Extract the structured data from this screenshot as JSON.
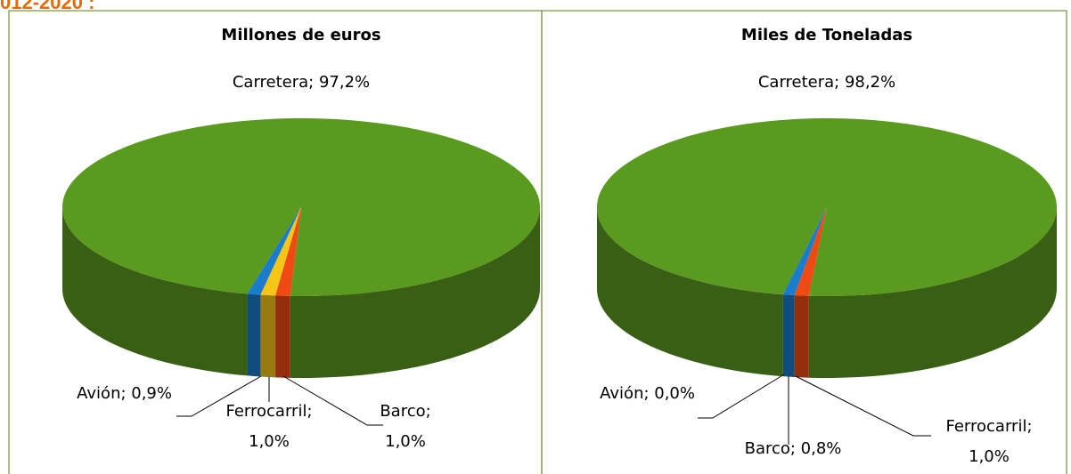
{
  "header_fragment": "012-2020 :",
  "chart_data": [
    {
      "type": "pie",
      "title": "Millones de euros",
      "categories": [
        "Carretera",
        "Avión",
        "Ferrocarril",
        "Barco"
      ],
      "values": [
        97.2,
        0.9,
        1.0,
        1.0
      ],
      "value_labels": [
        "Carretera; 97,2%",
        "Avión; 0,9%",
        "Ferrocarril; 1,0%",
        "Barco; 1,0%"
      ],
      "colors": [
        "#5a9a1e",
        "#1a7ccc",
        "#f5c518",
        "#f04a14"
      ]
    },
    {
      "type": "pie",
      "title": "Miles de Toneladas",
      "categories": [
        "Carretera",
        "Avión",
        "Barco",
        "Ferrocarril"
      ],
      "values": [
        98.2,
        0.0,
        0.8,
        1.0
      ],
      "value_labels": [
        "Carretera; 98,2%",
        "Avión; 0,0%",
        "Barco; 0,8%",
        "Ferrocarril; 1,0%"
      ],
      "colors": [
        "#5a9a1e",
        "#7f7f7f",
        "#1a7ccc",
        "#f04a14"
      ]
    }
  ]
}
